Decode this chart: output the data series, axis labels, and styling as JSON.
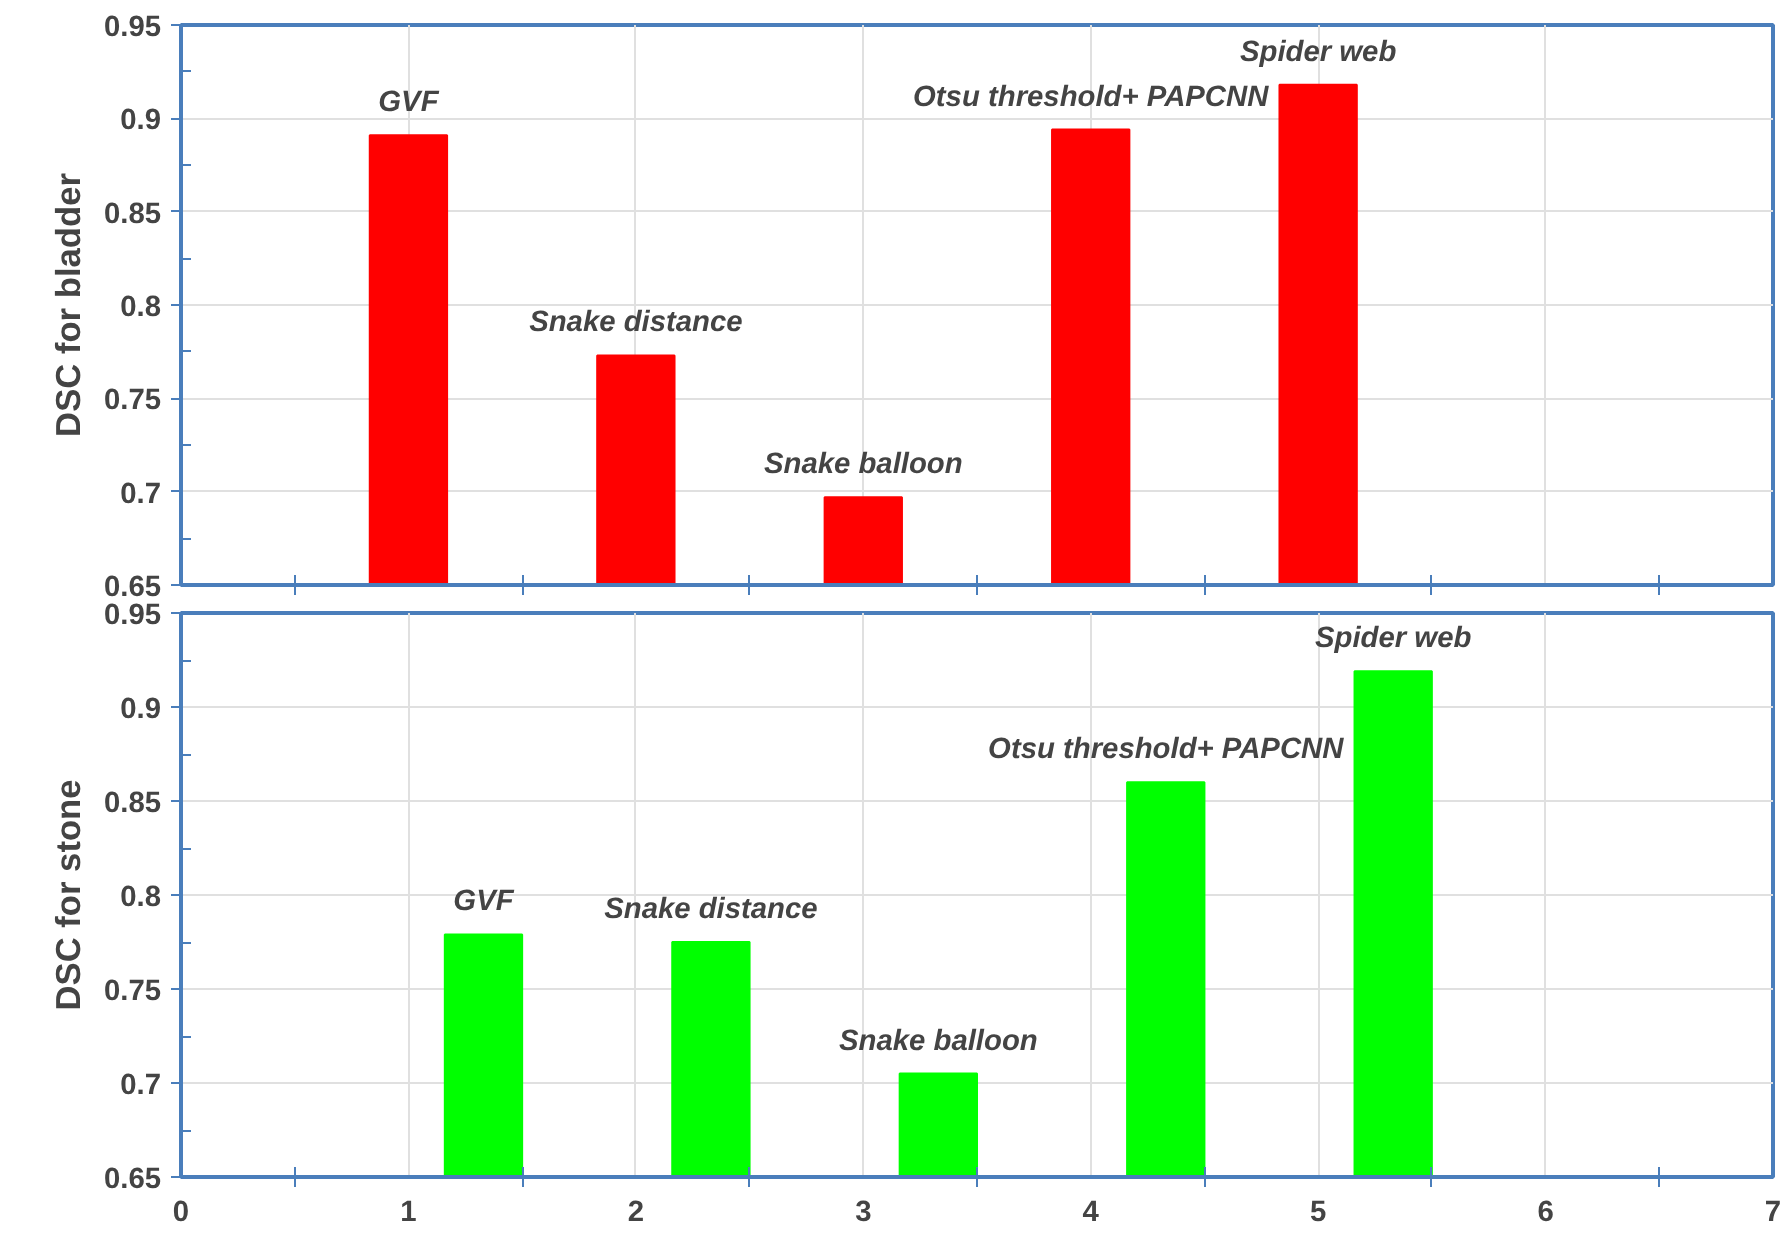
{
  "chart_data": [
    {
      "type": "bar",
      "ylabel": "DSC for bladder",
      "x": [
        1,
        2,
        3,
        4,
        5
      ],
      "series": [
        {
          "color": "#ff0000",
          "values": [
            0.891,
            0.773,
            0.697,
            0.894,
            0.918
          ]
        }
      ],
      "xlim": [
        0,
        7
      ],
      "xticks": [
        0,
        1,
        2,
        3,
        4,
        5,
        6,
        7
      ],
      "ylim": [
        0.65,
        0.95
      ],
      "yticks": [
        0.65,
        0.7,
        0.75,
        0.8,
        0.85,
        0.9,
        0.95
      ],
      "tick_labels": "y",
      "grid": true,
      "annotations": [
        {
          "text": "GVF",
          "x": 1,
          "y": 0.891
        },
        {
          "text": "Snake distance",
          "x": 2,
          "y": 0.773
        },
        {
          "text": "Snake balloon",
          "x": 3,
          "y": 0.697
        },
        {
          "text": "Otsu threshold+ PAPCNN",
          "x": 4,
          "y": 0.894
        },
        {
          "text": "Spider web",
          "x": 5,
          "y": 0.918
        }
      ]
    },
    {
      "type": "bar",
      "ylabel": "DSC for stone",
      "x": [
        1.33,
        2.33,
        3.33,
        4.33,
        5.33
      ],
      "series": [
        {
          "color": "#00ff00",
          "values": [
            0.779,
            0.775,
            0.705,
            0.86,
            0.919
          ]
        }
      ],
      "xlim": [
        0,
        7
      ],
      "xticks": [
        0,
        1,
        2,
        3,
        4,
        5,
        6,
        7
      ],
      "ylim": [
        0.65,
        0.95
      ],
      "yticks": [
        0.65,
        0.7,
        0.75,
        0.8,
        0.85,
        0.9,
        0.95
      ],
      "grid": true,
      "annotations": [
        {
          "text": "GVF",
          "x": 1.33,
          "y": 0.779
        },
        {
          "text": "Snake distance",
          "x": 2.33,
          "y": 0.775
        },
        {
          "text": "Snake balloon",
          "x": 3.33,
          "y": 0.705
        },
        {
          "text": "Otsu threshold+ PAPCNN",
          "x": 4.33,
          "y": 0.86
        },
        {
          "text": "Spider web",
          "x": 5.33,
          "y": 0.919
        }
      ]
    }
  ]
}
